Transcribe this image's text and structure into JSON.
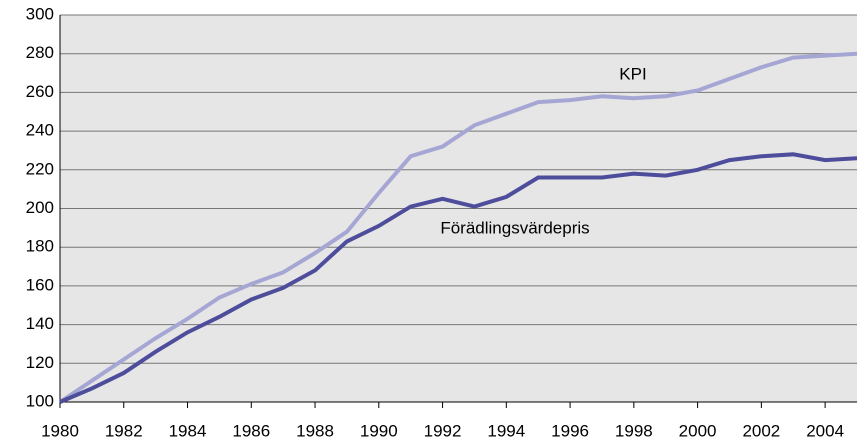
{
  "chart_data": {
    "type": "line",
    "x": [
      1980,
      1981,
      1982,
      1983,
      1984,
      1985,
      1986,
      1987,
      1988,
      1989,
      1990,
      1991,
      1992,
      1993,
      1994,
      1995,
      1996,
      1997,
      1998,
      1999,
      2000,
      2001,
      2002,
      2003,
      2004,
      2005
    ],
    "series": [
      {
        "name": "KPI",
        "color": "#a6a6d4",
        "values": [
          100,
          111,
          122,
          133,
          143,
          154,
          161,
          167,
          177,
          188,
          208,
          227,
          232,
          243,
          249,
          255,
          256,
          258,
          257,
          258,
          261,
          267,
          273,
          278,
          279,
          280
        ]
      },
      {
        "name": "Förädlingsvärdepris",
        "color": "#4d4d9c",
        "values": [
          100,
          107,
          115,
          126,
          136,
          144,
          153,
          159,
          168,
          183,
          191,
          201,
          205,
          201,
          206,
          216,
          216,
          216,
          218,
          217,
          220,
          225,
          227,
          228,
          225,
          226
        ]
      }
    ],
    "xlim": [
      1980,
      2005
    ],
    "xticks": [
      1980,
      1982,
      1984,
      1986,
      1988,
      1990,
      1992,
      1994,
      1996,
      1998,
      2000,
      2002,
      2004
    ],
    "ylim": [
      100,
      300
    ],
    "yticks": [
      100,
      120,
      140,
      160,
      180,
      200,
      220,
      240,
      260,
      280,
      300
    ],
    "grid": true
  }
}
